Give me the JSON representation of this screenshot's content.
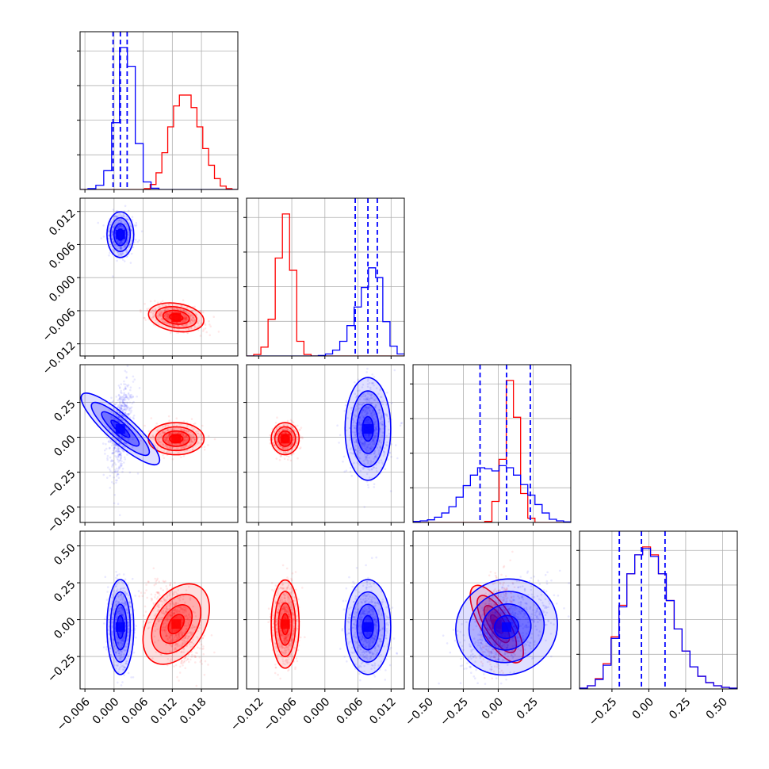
{
  "chart_data": {
    "type": "corner",
    "colors": {
      "set_a": "#0000ff",
      "set_b": "#ff0000",
      "grid": "#b0b0b0"
    },
    "grid": true,
    "params": [
      {
        "range": [
          -0.007,
          0.0255
        ],
        "ticks": [
          "−0.006",
          "0.000",
          "0.006",
          "0.012",
          "0.018"
        ],
        "tick_values": [
          -0.006,
          0.0,
          0.006,
          0.012,
          0.018
        ],
        "quantiles_a": [
          -0.0002,
          0.0013,
          0.0027
        ]
      },
      {
        "range": [
          -0.0142,
          0.0144
        ],
        "ticks": [
          "−0.012",
          "−0.006",
          "0.000",
          "0.006",
          "0.012"
        ],
        "tick_values": [
          -0.012,
          -0.006,
          0.0,
          0.006,
          0.012
        ],
        "quantiles_a": [
          0.0055,
          0.0078,
          0.0095
        ]
      },
      {
        "range": [
          -0.61,
          0.52
        ],
        "ticks": [
          "−0.50",
          "−0.25",
          "0.00",
          "0.25"
        ],
        "tick_values": [
          -0.5,
          -0.25,
          0.0,
          0.25
        ],
        "quantiles_a": [
          -0.13,
          0.06,
          0.23
        ]
      },
      {
        "range": [
          -0.47,
          0.6
        ],
        "ticks": [
          "−0.25",
          "0.00",
          "0.25",
          "0.50"
        ],
        "tick_values": [
          -0.25,
          0.0,
          0.25,
          0.5
        ],
        "quantiles_a": [
          -0.2,
          -0.05,
          0.11
        ]
      }
    ],
    "series": [
      {
        "key": "a",
        "mean": [
          0.0013,
          0.0078,
          0.06,
          -0.05
        ],
        "sd": [
          0.0012,
          0.0018,
          0.16,
          0.14
        ]
      },
      {
        "key": "b",
        "mean": [
          0.0128,
          -0.0072,
          -0.01,
          -0.03
        ],
        "sd": [
          0.0025,
          0.0011,
          0.05,
          0.13
        ]
      }
    ],
    "hist_counts": {
      "a": [
        [
          0,
          2,
          10,
          45,
          160,
          340,
          295,
          110,
          18,
          3,
          0,
          0,
          0,
          0,
          0,
          0,
          0,
          0,
          0,
          0
        ],
        [
          0,
          0,
          0,
          0,
          0,
          0,
          0,
          0,
          0,
          0,
          1,
          4,
          12,
          30,
          62,
          100,
          140,
          180,
          160,
          70,
          20,
          4
        ],
        [
          2,
          3,
          5,
          10,
          18,
          30,
          48,
          70,
          90,
          104,
          102,
          98,
          108,
          104,
          90,
          72,
          52,
          34,
          18,
          6,
          3,
          1
        ],
        [
          1,
          4,
          12,
          30,
          64,
          104,
          146,
          170,
          178,
          168,
          146,
          112,
          76,
          48,
          28,
          16,
          8,
          4,
          2,
          1
        ]
      ],
      "b": [
        [
          0,
          0,
          0,
          0,
          0,
          0,
          0,
          0,
          0,
          0,
          0,
          2,
          12,
          40,
          88,
          150,
          200,
          226,
          226,
          196,
          150,
          98,
          58,
          26,
          8,
          2,
          0
        ],
        [
          0,
          3,
          18,
          75,
          200,
          290,
          175,
          30,
          3,
          0,
          0,
          0,
          0,
          0,
          0,
          0,
          0,
          0,
          0,
          0,
          0,
          0
        ],
        [
          0,
          0,
          0,
          0,
          0,
          0,
          0,
          0,
          0,
          0,
          2,
          40,
          120,
          270,
          200,
          55,
          8,
          0,
          0,
          0,
          0,
          0
        ],
        [
          1,
          4,
          13,
          32,
          66,
          106,
          146,
          170,
          180,
          170,
          146,
          112,
          76,
          48,
          28,
          16,
          8,
          4,
          2,
          1
        ]
      ]
    }
  }
}
